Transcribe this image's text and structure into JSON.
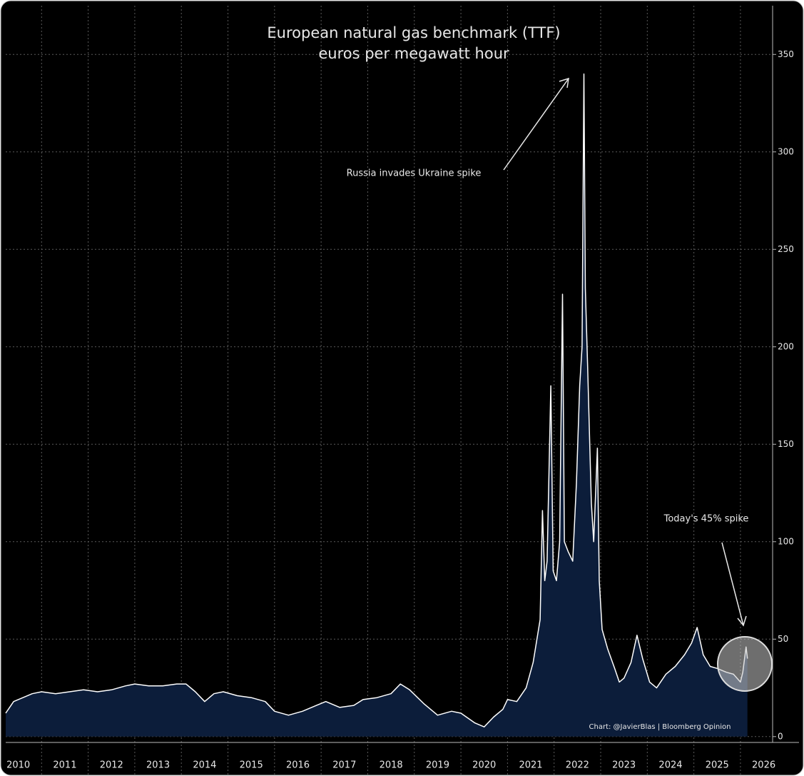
{
  "chart_data": {
    "type": "area",
    "title": "European natural gas benchmark (TTF)",
    "subtitle": "euros per megawatt hour",
    "annotations": [
      "Russia invades Ukraine spike",
      "Today's 45% spike",
      "Chart: @JavierBlas | Bloomberg Opinion"
    ],
    "x": [
      2010.23,
      2010.4,
      2010.6,
      2010.8,
      2011.0,
      2011.3,
      2011.6,
      2011.9,
      2012.2,
      2012.5,
      2012.8,
      2013.0,
      2013.3,
      2013.6,
      2013.9,
      2014.1,
      2014.3,
      2014.5,
      2014.7,
      2014.9,
      2015.2,
      2015.5,
      2015.8,
      2016.0,
      2016.3,
      2016.6,
      2016.9,
      2017.1,
      2017.4,
      2017.7,
      2017.9,
      2018.2,
      2018.5,
      2018.7,
      2018.9,
      2019.2,
      2019.5,
      2019.8,
      2020.0,
      2020.3,
      2020.5,
      2020.7,
      2020.9,
      2021.0,
      2021.2,
      2021.4,
      2021.55,
      2021.7,
      2021.75,
      2021.8,
      2021.85,
      2021.93,
      2021.98,
      2022.05,
      2022.12,
      2022.18,
      2022.22,
      2022.3,
      2022.4,
      2022.48,
      2022.55,
      2022.6,
      2022.64,
      2022.67,
      2022.72,
      2022.8,
      2022.85,
      2022.93,
      2022.97,
      2023.03,
      2023.15,
      2023.3,
      2023.4,
      2023.5,
      2023.65,
      2023.78,
      2023.9,
      2024.05,
      2024.2,
      2024.4,
      2024.6,
      2024.8,
      2024.95,
      2025.07,
      2025.2,
      2025.35,
      2025.5,
      2025.7,
      2025.85,
      2026.0,
      2026.05,
      2026.12,
      2026.15
    ],
    "series": [
      {
        "name": "TTF",
        "color": "#ffffff",
        "fill": "#0c1d3a",
        "values": [
          12,
          18,
          20,
          22,
          23,
          22,
          23,
          24,
          23,
          24,
          26,
          27,
          26,
          26,
          27,
          27,
          23,
          18,
          22,
          23,
          21,
          20,
          18,
          13,
          11,
          13,
          16,
          18,
          15,
          16,
          19,
          20,
          22,
          27,
          24,
          17,
          11,
          13,
          12,
          7,
          5,
          10,
          14,
          19,
          18,
          25,
          38,
          60,
          116,
          80,
          90,
          180,
          85,
          80,
          100,
          227,
          100,
          95,
          90,
          130,
          180,
          200,
          340,
          230,
          190,
          120,
          100,
          148,
          80,
          55,
          45,
          35,
          28,
          30,
          38,
          52,
          40,
          28,
          25,
          32,
          36,
          42,
          48,
          56,
          42,
          36,
          35,
          33,
          32,
          28,
          33,
          46,
          40
        ]
      }
    ],
    "xlim": [
      2010.23,
      2026.69
    ],
    "xticks": [
      {
        "value": 2010,
        "label": "2010"
      },
      {
        "value": 2011,
        "label": "2011"
      },
      {
        "value": 2012,
        "label": "2012"
      },
      {
        "value": 2013,
        "label": "2013"
      },
      {
        "value": 2014,
        "label": "2014"
      },
      {
        "value": 2015,
        "label": "2015"
      },
      {
        "value": 2016,
        "label": "2016"
      },
      {
        "value": 2017,
        "label": "2017"
      },
      {
        "value": 2018,
        "label": "2018"
      },
      {
        "value": 2019,
        "label": "2019"
      },
      {
        "value": 2020,
        "label": "2020"
      },
      {
        "value": 2021,
        "label": "2021"
      },
      {
        "value": 2022,
        "label": "2022"
      },
      {
        "value": 2023,
        "label": "2023"
      },
      {
        "value": 2024,
        "label": "2024"
      },
      {
        "value": 2025,
        "label": "2025"
      },
      {
        "value": 2026,
        "label": "2026"
      }
    ],
    "ylim": [
      -3,
      375
    ],
    "yticks": [
      0,
      50,
      100,
      150,
      200,
      250,
      300,
      350
    ],
    "grid": true
  }
}
